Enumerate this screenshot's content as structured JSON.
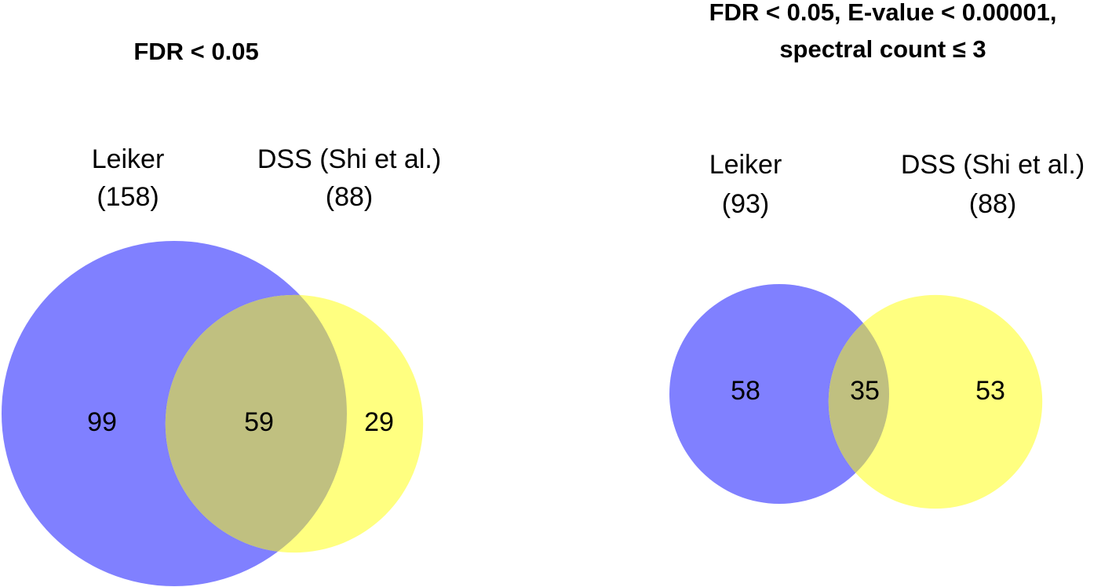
{
  "chart_data": [
    {
      "type": "venn",
      "title": [
        "FDR < 0.05"
      ],
      "sets": [
        {
          "name": "Leiker",
          "value": 158,
          "label": "(158)",
          "color": "#8080ff"
        },
        {
          "name": "DSS (Shi et al.)",
          "value": 88,
          "label": "(88)",
          "color": "#ffff80"
        }
      ],
      "overlap_color": "#c0c080",
      "values": [
        99,
        59,
        29
      ]
    },
    {
      "type": "venn",
      "title": [
        "FDR < 0.05, E-value < 0.00001,",
        "spectral count ≤ 3"
      ],
      "sets": [
        {
          "name": "Leiker",
          "value": 93,
          "label": "(93)",
          "color": "#8080ff"
        },
        {
          "name": "DSS (Shi et al.)",
          "value": 88,
          "label": "(88)",
          "color": "#ffff80"
        }
      ],
      "overlap_color": "#c0c080",
      "values": [
        58,
        35,
        53
      ]
    }
  ]
}
